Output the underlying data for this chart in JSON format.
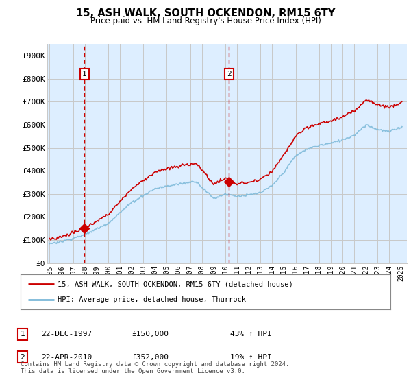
{
  "title": "15, ASH WALK, SOUTH OCKENDON, RM15 6TY",
  "subtitle": "Price paid vs. HM Land Registry's House Price Index (HPI)",
  "ylabel_ticks": [
    "£0",
    "£100K",
    "£200K",
    "£300K",
    "£400K",
    "£500K",
    "£600K",
    "£700K",
    "£800K",
    "£900K"
  ],
  "ytick_values": [
    0,
    100000,
    200000,
    300000,
    400000,
    500000,
    600000,
    700000,
    800000,
    900000
  ],
  "ylim": [
    0,
    950000
  ],
  "xlim_start": 1994.8,
  "xlim_end": 2025.5,
  "sale1_date": 1997.97,
  "sale1_price": 150000,
  "sale1_label": "1",
  "sale2_date": 2010.31,
  "sale2_price": 352000,
  "sale2_label": "2",
  "hpi_color": "#7ab8d8",
  "price_color": "#cc0000",
  "sale_marker_color": "#cc0000",
  "vline_color": "#cc0000",
  "grid_color": "#c8c8c8",
  "bg_color": "#ffffff",
  "chart_bg": "#ddeeff",
  "legend_label_price": "15, ASH WALK, SOUTH OCKENDON, RM15 6TY (detached house)",
  "legend_label_hpi": "HPI: Average price, detached house, Thurrock",
  "footer": "Contains HM Land Registry data © Crown copyright and database right 2024.\nThis data is licensed under the Open Government Licence v3.0.",
  "xtick_years": [
    1995,
    1996,
    1997,
    1998,
    1999,
    2000,
    2001,
    2002,
    2003,
    2004,
    2005,
    2006,
    2007,
    2008,
    2009,
    2010,
    2011,
    2012,
    2013,
    2014,
    2015,
    2016,
    2017,
    2018,
    2019,
    2020,
    2021,
    2022,
    2023,
    2024,
    2025
  ]
}
